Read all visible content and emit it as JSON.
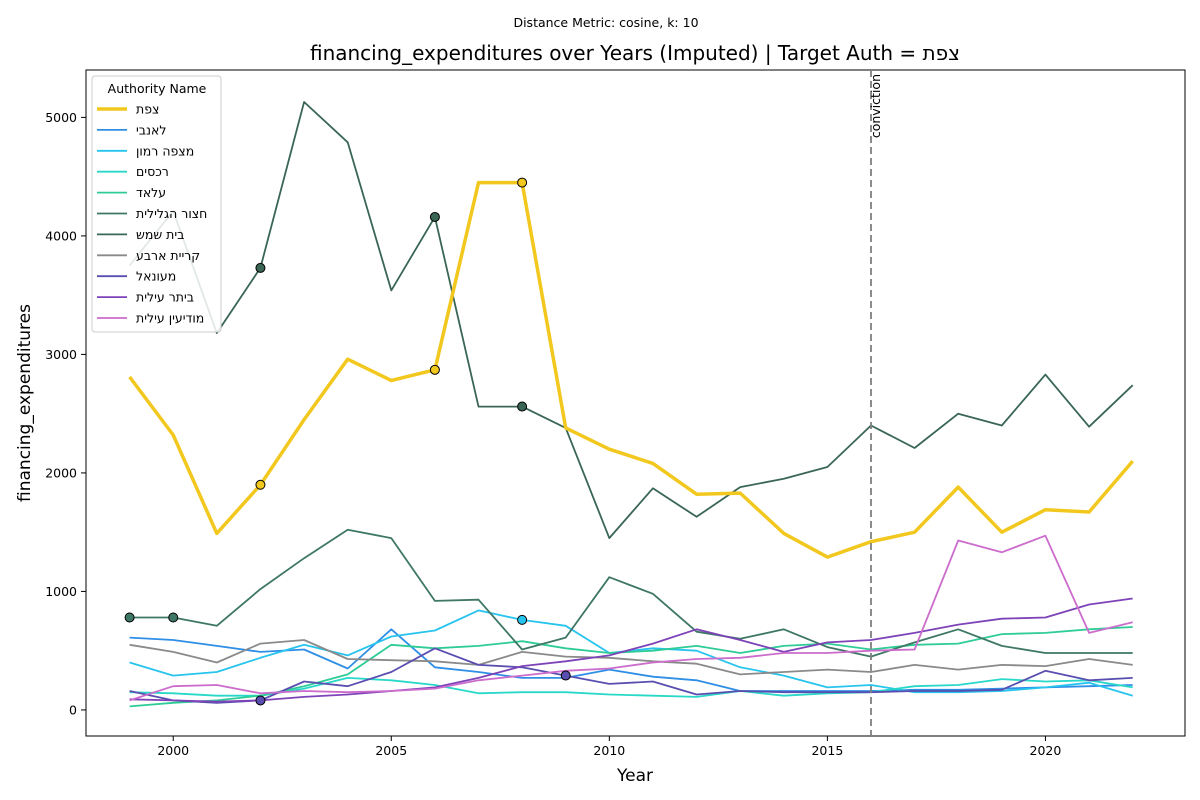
{
  "chart_data": {
    "type": "line",
    "suptitle": "Distance Metric: cosine, k: 10",
    "title": "financing_expenditures over Years (Imputed) | Target Auth = צפת",
    "xlabel": "Year",
    "ylabel": "financing_expenditures",
    "xlim": [
      1998.0,
      2023.2
    ],
    "ylim": [
      -220,
      5400
    ],
    "xticks": [
      2000,
      2005,
      2010,
      2015,
      2020
    ],
    "yticks": [
      0,
      1000,
      2000,
      3000,
      4000,
      5000
    ],
    "grid": false,
    "legend_title": "Authority Name",
    "legend_position": "top-left",
    "vline": {
      "x": 2016,
      "label": "conviction",
      "color": "#808080"
    },
    "x": [
      1999,
      2000,
      2001,
      2002,
      2003,
      2004,
      2005,
      2006,
      2007,
      2008,
      2009,
      2010,
      2011,
      2012,
      2013,
      2014,
      2015,
      2016,
      2017,
      2018,
      2019,
      2020,
      2021,
      2022
    ],
    "series": [
      {
        "name": "צפת",
        "color": "#f2c81f",
        "width": 3.5,
        "values": [
          2810,
          2320,
          1490,
          1900,
          2450,
          2960,
          2780,
          2870,
          4450,
          4450,
          2380,
          2200,
          2080,
          1820,
          1830,
          1490,
          1290,
          1420,
          1500,
          1880,
          1500,
          1690,
          1670,
          2100
        ],
        "imputed_years": [
          2002,
          2006,
          2008
        ]
      },
      {
        "name": "לאנבי",
        "color": "#2f8ee6",
        "width": 1.8,
        "values": [
          610,
          590,
          540,
          490,
          510,
          350,
          680,
          360,
          320,
          270,
          270,
          340,
          280,
          250,
          160,
          160,
          160,
          160,
          170,
          170,
          180,
          190,
          200,
          210
        ],
        "imputed_years": []
      },
      {
        "name": "מצפה רמון",
        "color": "#27c4ee",
        "width": 1.8,
        "values": [
          400,
          290,
          320,
          440,
          550,
          460,
          620,
          670,
          840,
          760,
          710,
          480,
          520,
          500,
          360,
          290,
          190,
          210,
          150,
          150,
          160,
          190,
          230,
          120
        ],
        "imputed_years": [
          2008
        ]
      },
      {
        "name": "רכסים",
        "color": "#28d8c8",
        "width": 1.8,
        "values": [
          150,
          140,
          120,
          120,
          180,
          270,
          250,
          210,
          140,
          150,
          150,
          130,
          120,
          110,
          160,
          120,
          140,
          150,
          200,
          210,
          260,
          240,
          250,
          190
        ],
        "imputed_years": []
      },
      {
        "name": "עלאד",
        "color": "#2ecc96",
        "width": 1.8,
        "values": [
          30,
          60,
          80,
          120,
          200,
          300,
          550,
          520,
          540,
          580,
          520,
          480,
          500,
          540,
          480,
          540,
          560,
          510,
          550,
          560,
          640,
          650,
          680,
          700
        ],
        "imputed_years": []
      },
      {
        "name": "חצור הגלילית",
        "color": "#3e7766",
        "width": 1.8,
        "values": [
          780,
          780,
          710,
          1020,
          1280,
          1520,
          1450,
          920,
          930,
          510,
          610,
          1120,
          980,
          660,
          600,
          680,
          530,
          450,
          570,
          680,
          540,
          480,
          480,
          480
        ],
        "imputed_years": [
          1999,
          2000
        ]
      },
      {
        "name": "בית שמש",
        "color": "#3a6655",
        "width": 1.8,
        "values": [
          3750,
          4210,
          3180,
          3730,
          5130,
          4790,
          3540,
          4160,
          2560,
          2560,
          2380,
          1450,
          1870,
          1630,
          1880,
          1950,
          2050,
          2400,
          2210,
          2500,
          2400,
          2830,
          2390,
          2740
        ],
        "imputed_years": [
          2002,
          2006,
          2008
        ]
      },
      {
        "name": "קריית ארבע",
        "color": "#8a8a8a",
        "width": 1.8,
        "values": [
          550,
          490,
          400,
          560,
          590,
          430,
          420,
          410,
          380,
          490,
          450,
          440,
          410,
          390,
          300,
          320,
          340,
          320,
          380,
          340,
          380,
          370,
          430,
          380
        ],
        "imputed_years": []
      },
      {
        "name": "מעונאל",
        "color": "#5a4fb0",
        "width": 1.8,
        "values": [
          160,
          80,
          60,
          80,
          240,
          200,
          320,
          520,
          380,
          360,
          290,
          220,
          240,
          130,
          160,
          150,
          150,
          150,
          160,
          160,
          170,
          330,
          250,
          270
        ],
        "imputed_years": [
          2002,
          2009
        ]
      },
      {
        "name": "ביתר עילית",
        "color": "#7e43b8",
        "width": 1.8,
        "values": [
          90,
          80,
          70,
          80,
          110,
          130,
          160,
          190,
          270,
          370,
          410,
          460,
          560,
          680,
          590,
          490,
          570,
          590,
          650,
          720,
          770,
          780,
          890,
          940
        ],
        "imputed_years": []
      },
      {
        "name": "מודיעין עילית",
        "color": "#cc6ccc",
        "width": 1.8,
        "values": [
          80,
          200,
          210,
          140,
          160,
          150,
          160,
          180,
          250,
          290,
          330,
          350,
          400,
          430,
          440,
          480,
          480,
          500,
          510,
          1430,
          1330,
          1470,
          650,
          740
        ],
        "imputed_years": []
      }
    ]
  }
}
